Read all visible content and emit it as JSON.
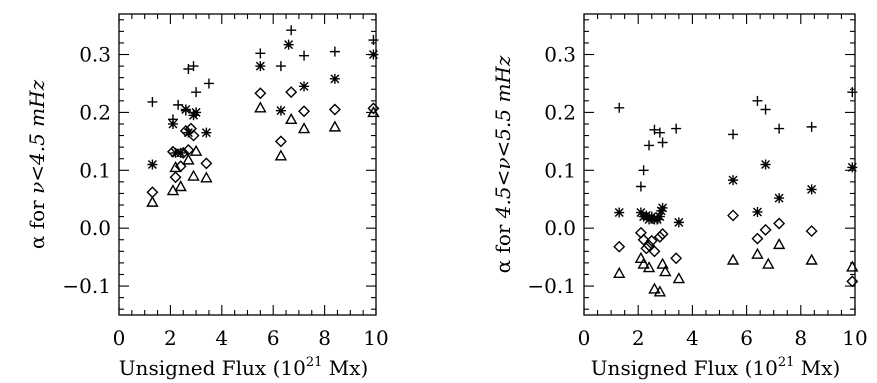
{
  "chart_data": [
    {
      "type": "scatter",
      "title": "",
      "xlabel": "Unsigned Flux (10",
      "xlabel_sup": "21",
      "xlabel_tail": " Mx)",
      "ylabel_pre": "α for ",
      "ylabel_expr": "ν<4.5 mHz",
      "xlim": [
        0,
        10
      ],
      "ylim": [
        -0.15,
        0.37
      ],
      "xticks": [
        "0",
        "2",
        "4",
        "6",
        "8",
        "10"
      ],
      "yticks": [
        "−0.1",
        "0.0",
        "0.1",
        "0.2",
        "0.3"
      ],
      "yticks_values": [
        -0.1,
        0.0,
        0.1,
        0.2,
        0.3
      ],
      "grid": false,
      "series": [
        {
          "marker": "plus",
          "points": [
            [
              1.3,
              0.218
            ],
            [
              2.1,
              0.188
            ],
            [
              2.3,
              0.213
            ],
            [
              2.6,
              0.203
            ],
            [
              2.7,
              0.275
            ],
            [
              2.9,
              0.28
            ],
            [
              3.0,
              0.235
            ],
            [
              3.5,
              0.25
            ],
            [
              5.5,
              0.302
            ],
            [
              6.3,
              0.28
            ],
            [
              6.7,
              0.342
            ],
            [
              7.2,
              0.298
            ],
            [
              8.4,
              0.305
            ],
            [
              9.9,
              0.325
            ]
          ]
        },
        {
          "marker": "asterisk",
          "points": [
            [
              1.3,
              0.11
            ],
            [
              2.1,
              0.18
            ],
            [
              2.2,
              0.13
            ],
            [
              2.4,
              0.13
            ],
            [
              2.6,
              0.205
            ],
            [
              2.7,
              0.165
            ],
            [
              2.9,
              0.195
            ],
            [
              3.0,
              0.2
            ],
            [
              3.4,
              0.165
            ],
            [
              5.5,
              0.28
            ],
            [
              6.3,
              0.203
            ],
            [
              6.6,
              0.317
            ],
            [
              7.2,
              0.245
            ],
            [
              8.4,
              0.258
            ],
            [
              9.9,
              0.3
            ]
          ]
        },
        {
          "marker": "diamond",
          "points": [
            [
              1.3,
              0.062
            ],
            [
              2.1,
              0.132
            ],
            [
              2.2,
              0.088
            ],
            [
              2.4,
              0.107
            ],
            [
              2.5,
              0.13
            ],
            [
              2.6,
              0.168
            ],
            [
              2.7,
              0.135
            ],
            [
              2.8,
              0.172
            ],
            [
              2.9,
              0.16
            ],
            [
              3.4,
              0.112
            ],
            [
              5.5,
              0.233
            ],
            [
              6.3,
              0.15
            ],
            [
              6.7,
              0.235
            ],
            [
              7.2,
              0.202
            ],
            [
              8.4,
              0.205
            ],
            [
              9.9,
              0.207
            ]
          ]
        },
        {
          "marker": "triangle",
          "points": [
            [
              1.3,
              0.045
            ],
            [
              2.1,
              0.065
            ],
            [
              2.2,
              0.105
            ],
            [
              2.4,
              0.072
            ],
            [
              2.7,
              0.118
            ],
            [
              2.9,
              0.09
            ],
            [
              3.0,
              0.133
            ],
            [
              3.4,
              0.087
            ],
            [
              5.5,
              0.208
            ],
            [
              6.3,
              0.125
            ],
            [
              6.7,
              0.188
            ],
            [
              7.2,
              0.172
            ],
            [
              8.4,
              0.175
            ],
            [
              9.9,
              0.2
            ]
          ]
        }
      ]
    },
    {
      "type": "scatter",
      "title": "",
      "xlabel": "Unsigned Flux (10",
      "xlabel_sup": "21",
      "xlabel_tail": " Mx)",
      "ylabel_pre": "α for ",
      "ylabel_expr": "4.5<ν<5.5 mHz",
      "xlim": [
        0,
        10
      ],
      "ylim": [
        -0.15,
        0.37
      ],
      "xticks": [
        "0",
        "2",
        "4",
        "6",
        "8",
        "10"
      ],
      "yticks": [
        "−0.1",
        "0.0",
        "0.1",
        "0.2",
        "0.3"
      ],
      "yticks_values": [
        -0.1,
        0.0,
        0.1,
        0.2,
        0.3
      ],
      "grid": false,
      "series": [
        {
          "marker": "plus",
          "points": [
            [
              1.3,
              0.208
            ],
            [
              2.1,
              0.072
            ],
            [
              2.2,
              0.1
            ],
            [
              2.4,
              0.143
            ],
            [
              2.6,
              0.17
            ],
            [
              2.8,
              0.165
            ],
            [
              2.9,
              0.148
            ],
            [
              3.4,
              0.172
            ],
            [
              5.5,
              0.162
            ],
            [
              6.4,
              0.22
            ],
            [
              6.7,
              0.205
            ],
            [
              7.2,
              0.172
            ],
            [
              8.4,
              0.175
            ],
            [
              9.9,
              0.235
            ]
          ]
        },
        {
          "marker": "asterisk",
          "points": [
            [
              1.3,
              0.027
            ],
            [
              2.1,
              0.027
            ],
            [
              2.2,
              0.02
            ],
            [
              2.3,
              0.022
            ],
            [
              2.4,
              0.015
            ],
            [
              2.5,
              0.02
            ],
            [
              2.6,
              0.015
            ],
            [
              2.7,
              0.015
            ],
            [
              2.8,
              0.02
            ],
            [
              2.85,
              0.03
            ],
            [
              2.9,
              0.035
            ],
            [
              3.5,
              0.01
            ],
            [
              5.5,
              0.083
            ],
            [
              6.4,
              0.028
            ],
            [
              6.7,
              0.11
            ],
            [
              7.2,
              0.052
            ],
            [
              8.4,
              0.067
            ],
            [
              9.9,
              0.105
            ]
          ]
        },
        {
          "marker": "diamond",
          "points": [
            [
              1.3,
              -0.032
            ],
            [
              2.1,
              -0.008
            ],
            [
              2.2,
              -0.02
            ],
            [
              2.3,
              -0.035
            ],
            [
              2.4,
              -0.03
            ],
            [
              2.5,
              -0.022
            ],
            [
              2.6,
              -0.04
            ],
            [
              2.8,
              -0.015
            ],
            [
              2.9,
              -0.01
            ],
            [
              3.4,
              -0.052
            ],
            [
              5.5,
              0.022
            ],
            [
              6.4,
              -0.018
            ],
            [
              6.7,
              -0.003
            ],
            [
              7.2,
              0.008
            ],
            [
              8.4,
              -0.005
            ],
            [
              9.9,
              -0.092
            ]
          ]
        },
        {
          "marker": "triangle",
          "points": [
            [
              1.3,
              -0.078
            ],
            [
              2.1,
              -0.052
            ],
            [
              2.2,
              -0.062
            ],
            [
              2.4,
              -0.068
            ],
            [
              2.6,
              -0.105
            ],
            [
              2.8,
              -0.11
            ],
            [
              2.9,
              -0.062
            ],
            [
              3.0,
              -0.075
            ],
            [
              3.5,
              -0.087
            ],
            [
              5.5,
              -0.055
            ],
            [
              6.4,
              -0.045
            ],
            [
              6.8,
              -0.062
            ],
            [
              7.2,
              -0.028
            ],
            [
              8.4,
              -0.055
            ],
            [
              9.9,
              -0.067
            ]
          ]
        }
      ]
    }
  ]
}
